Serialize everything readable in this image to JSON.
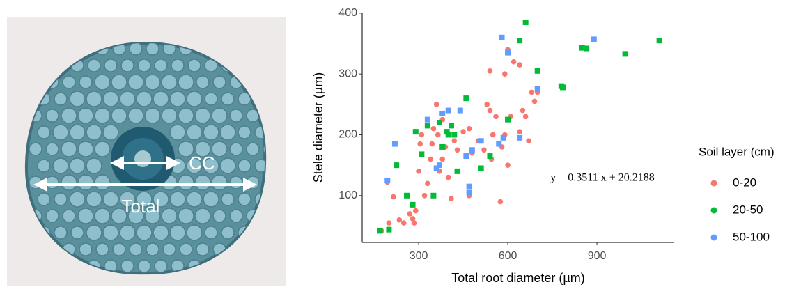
{
  "image": {
    "labels": [
      "CC",
      "Total"
    ]
  },
  "chart_data": {
    "type": "scatter",
    "x_label": "Total root diameter (µm)",
    "y_label": "Stele diameter (µm)",
    "annotation": "y = 0.3511 x + 20.2188",
    "legend_title": "Soil layer (cm)",
    "legend_position": "right",
    "xlim": [
      110,
      1160
    ],
    "ylim": [
      23,
      401
    ],
    "xticks": [
      300,
      600,
      900
    ],
    "yticks": [
      100,
      200,
      300,
      400
    ],
    "series": [
      {
        "name": "0-20",
        "color": "#f8766d",
        "marker": "circle",
        "x": [
          175,
          200,
          195,
          215,
          235,
          250,
          260,
          270,
          280,
          285,
          290,
          300,
          305,
          310,
          320,
          330,
          340,
          345,
          350,
          360,
          365,
          370,
          380,
          390,
          400,
          410,
          420,
          430,
          450,
          470,
          480,
          500,
          520,
          530,
          540,
          545,
          550,
          560,
          575,
          580,
          590,
          600,
          600,
          610,
          620,
          640,
          650,
          660,
          670,
          680,
          690,
          700,
          540,
          590,
          470,
          380,
          640
        ],
        "values": [
          42,
          55,
          122,
          98,
          60,
          55,
          100,
          70,
          62,
          55,
          75,
          140,
          185,
          200,
          100,
          120,
          160,
          185,
          210,
          250,
          200,
          140,
          160,
          180,
          130,
          95,
          190,
          175,
          205,
          100,
          170,
          190,
          175,
          250,
          240,
          160,
          200,
          230,
          90,
          180,
          200,
          150,
          340,
          230,
          320,
          205,
          240,
          230,
          190,
          270,
          255,
          270,
          305,
          300,
          210,
          225,
          315
        ]
      },
      {
        "name": "20-50",
        "color": "#00ba38",
        "marker": "square",
        "x": [
          170,
          200,
          225,
          260,
          280,
          290,
          310,
          330,
          350,
          370,
          380,
          395,
          400,
          420,
          430,
          460,
          510,
          540,
          600,
          640,
          660,
          700,
          780,
          785,
          850,
          865,
          995,
          1110,
          410
        ],
        "values": [
          42,
          44,
          150,
          100,
          85,
          205,
          168,
          215,
          100,
          220,
          180,
          205,
          200,
          200,
          140,
          260,
          145,
          165,
          225,
          355,
          385,
          305,
          280,
          278,
          343,
          342,
          333,
          355,
          215
        ]
      },
      {
        "name": "50-100",
        "color": "#619cff",
        "marker": "square",
        "x": [
          195,
          220,
          330,
          370,
          380,
          400,
          440,
          460,
          470,
          480,
          510,
          570,
          580,
          585,
          600,
          640,
          700,
          890,
          470,
          360
        ],
        "values": [
          125,
          185,
          225,
          150,
          235,
          240,
          240,
          165,
          115,
          175,
          190,
          185,
          360,
          195,
          335,
          195,
          275,
          357,
          105,
          145
        ]
      }
    ]
  }
}
